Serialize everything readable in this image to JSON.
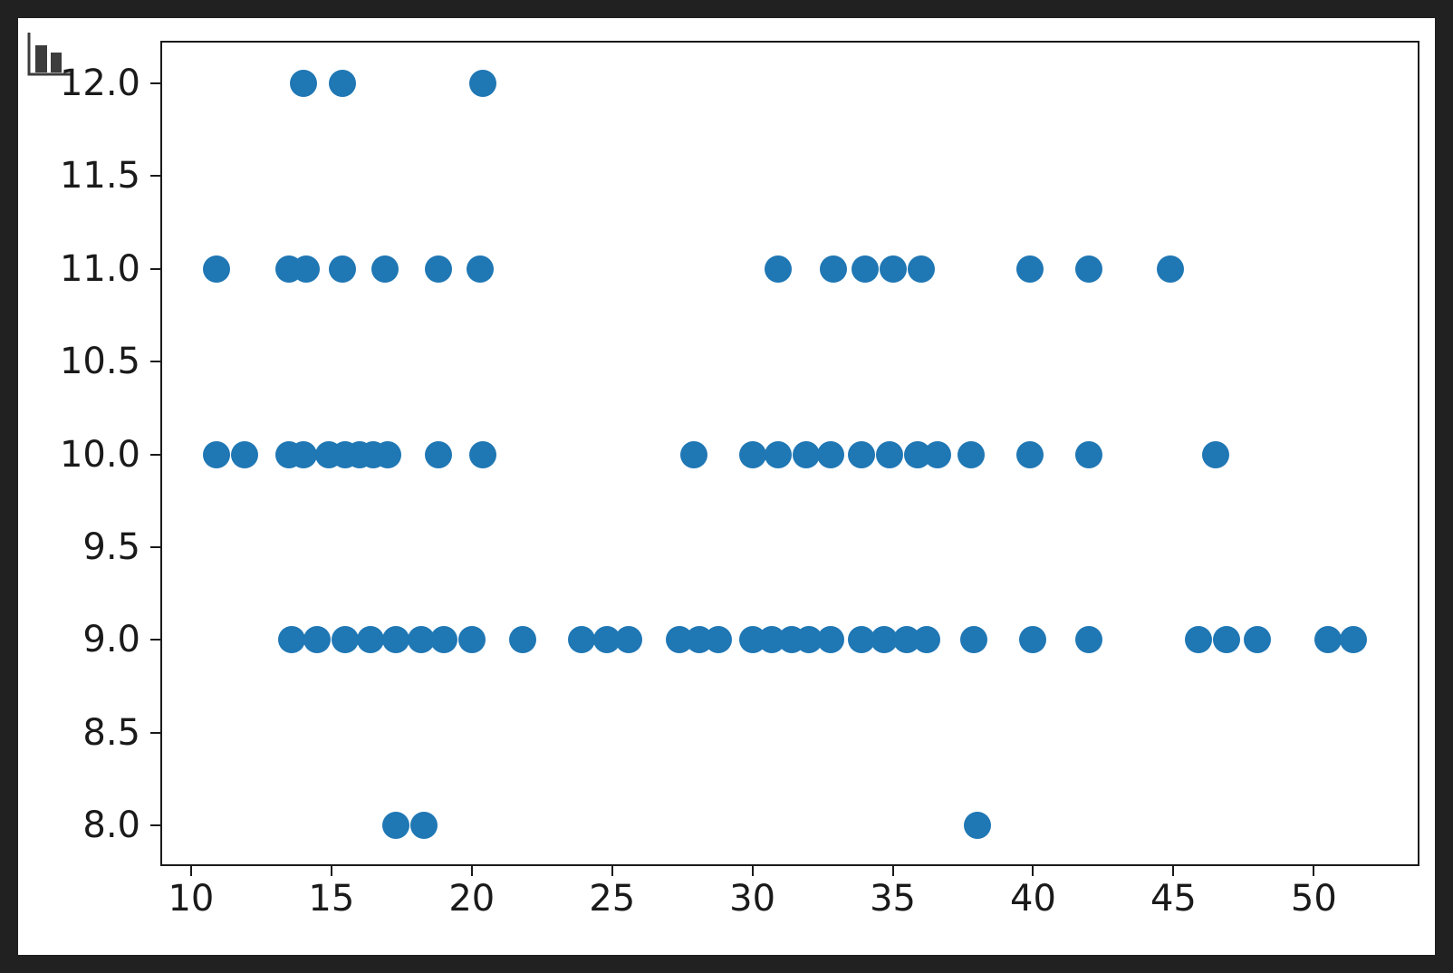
{
  "figure": {
    "page_background": "#212121",
    "figure_background": "#ffffff",
    "axis_color": "#1a1a1a",
    "icon": "bar-chart-icon"
  },
  "chart_data": {
    "type": "scatter",
    "title": "",
    "xlabel": "",
    "ylabel": "",
    "grid": false,
    "legend": null,
    "marker_color": "#1f77b4",
    "marker_diameter_px": 30,
    "xlim": [
      8.97,
      53.7
    ],
    "ylim": [
      7.79,
      12.22
    ],
    "x_ticks": [
      10,
      15,
      20,
      25,
      30,
      35,
      40,
      45,
      50
    ],
    "x_tick_labels": [
      "10",
      "15",
      "20",
      "25",
      "30",
      "35",
      "40",
      "45",
      "50"
    ],
    "y_ticks": [
      12.0,
      11.5,
      11.0,
      10.5,
      10.0,
      9.5,
      9.0,
      8.5,
      8.0
    ],
    "y_tick_labels": [
      "12.0",
      "11.5",
      "11.0",
      "10.5",
      "10.0",
      "9.5",
      "9.0",
      "8.5",
      "8.0"
    ],
    "points": [
      [
        14.0,
        12
      ],
      [
        15.4,
        12
      ],
      [
        20.4,
        12
      ],
      [
        10.9,
        11
      ],
      [
        13.5,
        11
      ],
      [
        14.1,
        11
      ],
      [
        15.4,
        11
      ],
      [
        16.9,
        11
      ],
      [
        18.8,
        11
      ],
      [
        20.3,
        11
      ],
      [
        30.9,
        11
      ],
      [
        32.9,
        11
      ],
      [
        34.0,
        11
      ],
      [
        35.0,
        11
      ],
      [
        36.0,
        11
      ],
      [
        39.9,
        11
      ],
      [
        42.0,
        11
      ],
      [
        44.9,
        11
      ],
      [
        10.9,
        10
      ],
      [
        11.9,
        10
      ],
      [
        13.5,
        10
      ],
      [
        14.0,
        10
      ],
      [
        14.9,
        10
      ],
      [
        15.5,
        10
      ],
      [
        16.0,
        10
      ],
      [
        16.5,
        10
      ],
      [
        17.0,
        10
      ],
      [
        18.8,
        10
      ],
      [
        20.4,
        10
      ],
      [
        27.9,
        10
      ],
      [
        30.0,
        10
      ],
      [
        30.9,
        10
      ],
      [
        31.9,
        10
      ],
      [
        32.8,
        10
      ],
      [
        33.9,
        10
      ],
      [
        34.9,
        10
      ],
      [
        35.9,
        10
      ],
      [
        36.6,
        10
      ],
      [
        37.8,
        10
      ],
      [
        39.9,
        10
      ],
      [
        42.0,
        10
      ],
      [
        46.5,
        10
      ],
      [
        13.6,
        9
      ],
      [
        14.5,
        9
      ],
      [
        15.5,
        9
      ],
      [
        16.4,
        9
      ],
      [
        17.3,
        9
      ],
      [
        18.2,
        9
      ],
      [
        19.0,
        9
      ],
      [
        20.0,
        9
      ],
      [
        21.8,
        9
      ],
      [
        23.9,
        9
      ],
      [
        24.8,
        9
      ],
      [
        25.6,
        9
      ],
      [
        27.4,
        9
      ],
      [
        28.1,
        9
      ],
      [
        28.8,
        9
      ],
      [
        30.0,
        9
      ],
      [
        30.7,
        9
      ],
      [
        31.4,
        9
      ],
      [
        32.0,
        9
      ],
      [
        32.8,
        9
      ],
      [
        33.9,
        9
      ],
      [
        34.7,
        9
      ],
      [
        35.5,
        9
      ],
      [
        36.2,
        9
      ],
      [
        37.9,
        9
      ],
      [
        40.0,
        9
      ],
      [
        42.0,
        9
      ],
      [
        45.9,
        9
      ],
      [
        46.9,
        9
      ],
      [
        48.0,
        9
      ],
      [
        50.5,
        9
      ],
      [
        51.4,
        9
      ],
      [
        17.3,
        8
      ],
      [
        18.3,
        8
      ],
      [
        38.0,
        8
      ]
    ]
  }
}
